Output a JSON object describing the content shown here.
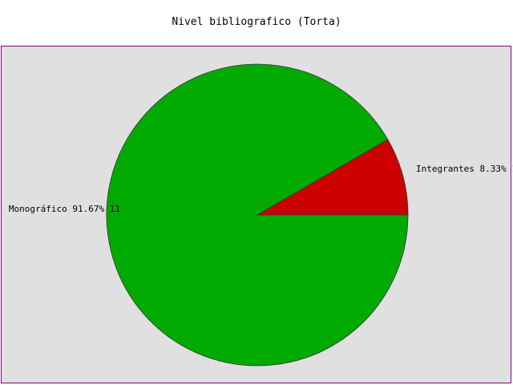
{
  "chart_data": {
    "type": "pie",
    "title": "Nivel bibliografico (Torta)",
    "slices": [
      {
        "label": "Integrantes",
        "value": 1,
        "percent": "8.33%",
        "color": "#cc0000"
      },
      {
        "label": "Monográfico",
        "value": 11,
        "percent": "91.67%",
        "color": "#00aa00"
      }
    ],
    "start_angle_deg": 0,
    "direction": "counterclockwise",
    "slice_border_color": "#333333",
    "plot_background": "#e0e0e0",
    "plot_border_color": "#800080"
  }
}
